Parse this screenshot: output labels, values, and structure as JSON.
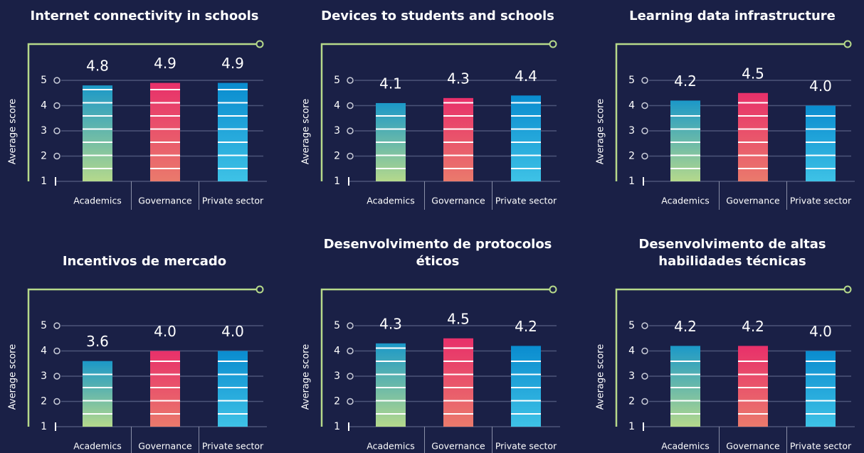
{
  "chart_data": [
    {
      "type": "bar",
      "title": "Internet connectivity in schools",
      "ylabel": "Average score",
      "categories": [
        "Academics",
        "Governance",
        "Private sector"
      ],
      "values": [
        4.8,
        4.9,
        4.9
      ],
      "value_labels": [
        "4.8",
        "4.9",
        "4.9"
      ],
      "colors": [
        {
          "top": "#1b98c8",
          "bottom": "#b5d98c"
        },
        {
          "top": "#e8306a",
          "bottom": "#ea7a6c"
        },
        {
          "top": "#0a8ccf",
          "bottom": "#3ec2e6"
        }
      ],
      "ylim": [
        1,
        5
      ],
      "yticks": [
        1,
        2,
        3,
        4,
        5
      ],
      "grid": true
    },
    {
      "type": "bar",
      "title": "Devices to students and schools",
      "ylabel": "Average score",
      "categories": [
        "Academics",
        "Governance",
        "Private sector"
      ],
      "values": [
        4.1,
        4.3,
        4.4
      ],
      "value_labels": [
        "4.1",
        "4.3",
        "4.4"
      ],
      "colors": [
        {
          "top": "#1b98c8",
          "bottom": "#b5d98c"
        },
        {
          "top": "#e8306a",
          "bottom": "#ea7a6c"
        },
        {
          "top": "#0a8ccf",
          "bottom": "#3ec2e6"
        }
      ],
      "ylim": [
        1,
        5
      ],
      "yticks": [
        1,
        2,
        3,
        4,
        5
      ],
      "grid": true
    },
    {
      "type": "bar",
      "title": "Learning data infrastructure",
      "ylabel": "Average score",
      "categories": [
        "Academics",
        "Governance",
        "Private sector"
      ],
      "values": [
        4.2,
        4.5,
        4.0
      ],
      "value_labels": [
        "4.2",
        "4.5",
        "4.0"
      ],
      "colors": [
        {
          "top": "#1b98c8",
          "bottom": "#b5d98c"
        },
        {
          "top": "#e8306a",
          "bottom": "#ea7a6c"
        },
        {
          "top": "#0a8ccf",
          "bottom": "#3ec2e6"
        }
      ],
      "ylim": [
        1,
        5
      ],
      "yticks": [
        1,
        2,
        3,
        4,
        5
      ],
      "grid": true
    },
    {
      "type": "bar",
      "title": "Incentivos de mercado",
      "ylabel": "Average score",
      "categories": [
        "Academics",
        "Governance",
        "Private sector"
      ],
      "values": [
        3.6,
        4.0,
        4.0
      ],
      "value_labels": [
        "3.6",
        "4.0",
        "4.0"
      ],
      "colors": [
        {
          "top": "#1b98c8",
          "bottom": "#b5d98c"
        },
        {
          "top": "#e8306a",
          "bottom": "#ea7a6c"
        },
        {
          "top": "#0a8ccf",
          "bottom": "#3ec2e6"
        }
      ],
      "ylim": [
        1,
        5
      ],
      "yticks": [
        1,
        2,
        3,
        4,
        5
      ],
      "grid": true
    },
    {
      "type": "bar",
      "title": "Desenvolvimento de protocolos éticos",
      "ylabel": "Average score",
      "categories": [
        "Academics",
        "Governance",
        "Private sector"
      ],
      "values": [
        4.3,
        4.5,
        4.2
      ],
      "value_labels": [
        "4.3",
        "4.5",
        "4.2"
      ],
      "colors": [
        {
          "top": "#1b98c8",
          "bottom": "#b5d98c"
        },
        {
          "top": "#e8306a",
          "bottom": "#ea7a6c"
        },
        {
          "top": "#0a8ccf",
          "bottom": "#3ec2e6"
        }
      ],
      "ylim": [
        1,
        5
      ],
      "yticks": [
        1,
        2,
        3,
        4,
        5
      ],
      "grid": true
    },
    {
      "type": "bar",
      "title": "Desenvolvimento de altas habilidades técnicas",
      "ylabel": "Average score",
      "categories": [
        "Academics",
        "Governance",
        "Private sector"
      ],
      "values": [
        4.2,
        4.2,
        4.0
      ],
      "value_labels": [
        "4.2",
        "4.2",
        "4.0"
      ],
      "colors": [
        {
          "top": "#1b98c8",
          "bottom": "#b5d98c"
        },
        {
          "top": "#e8306a",
          "bottom": "#ea7a6c"
        },
        {
          "top": "#0a8ccf",
          "bottom": "#3ec2e6"
        }
      ],
      "ylim": [
        1,
        5
      ],
      "yticks": [
        1,
        2,
        3,
        4,
        5
      ],
      "grid": true
    }
  ]
}
